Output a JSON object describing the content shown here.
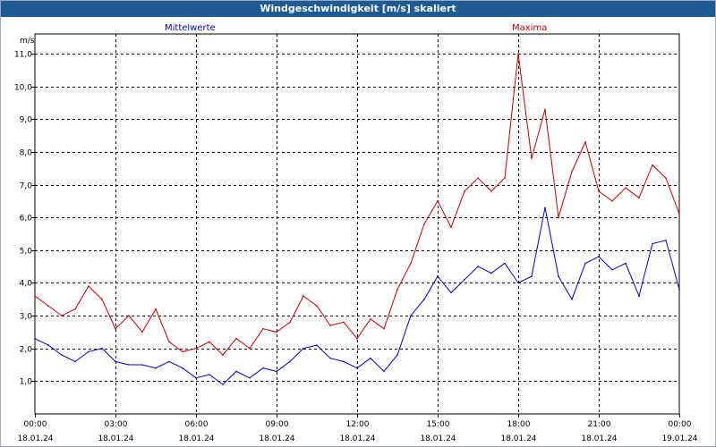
{
  "window": {
    "title": "Windgeschwindigkeit [m/s] skaliert"
  },
  "chart_data": {
    "type": "line",
    "title": "Windgeschwindigkeit [m/s] skaliert",
    "ylabel": "m/s",
    "ylim": [
      0,
      11.6
    ],
    "yticks": [
      "1,0",
      "2,0",
      "3,0",
      "4,0",
      "5,0",
      "6,0",
      "7,0",
      "8,0",
      "9,0",
      "10,0",
      "11,0"
    ],
    "xlim": [
      "18.01.24 00:00",
      "19.01.24 00:00"
    ],
    "xticks": [
      {
        "time": "00:00",
        "date": "18.01.24"
      },
      {
        "time": "03:00",
        "date": "18.01.24"
      },
      {
        "time": "06:00",
        "date": "18.01.24"
      },
      {
        "time": "09:00",
        "date": "18.01.24"
      },
      {
        "time": "12:00",
        "date": "18.01.24"
      },
      {
        "time": "15:00",
        "date": "18.01.24"
      },
      {
        "time": "18:00",
        "date": "18.01.24"
      },
      {
        "time": "21:00",
        "date": "18.01.24"
      },
      {
        "time": "00:00",
        "date": "19.01.24"
      }
    ],
    "grid": true,
    "x": [
      "00:00",
      "00:30",
      "01:00",
      "01:30",
      "02:00",
      "02:30",
      "03:00",
      "03:30",
      "04:00",
      "04:30",
      "05:00",
      "05:30",
      "06:00",
      "06:30",
      "07:00",
      "07:30",
      "08:00",
      "08:30",
      "09:00",
      "09:30",
      "10:00",
      "10:30",
      "11:00",
      "11:30",
      "12:00",
      "12:30",
      "13:00",
      "13:30",
      "14:00",
      "14:30",
      "15:00",
      "15:30",
      "16:00",
      "16:30",
      "17:00",
      "17:30",
      "18:00",
      "18:30",
      "19:00",
      "19:30",
      "20:00",
      "20:30",
      "21:00",
      "21:30",
      "22:00",
      "22:30",
      "23:00",
      "23:30",
      "00:00"
    ],
    "series": [
      {
        "name": "Mittelwerte",
        "color": "#0000c0",
        "values": [
          2.3,
          2.1,
          1.8,
          1.6,
          1.9,
          2.0,
          1.6,
          1.5,
          1.5,
          1.4,
          1.6,
          1.4,
          1.1,
          1.2,
          0.9,
          1.3,
          1.1,
          1.4,
          1.3,
          1.6,
          2.0,
          2.1,
          1.7,
          1.6,
          1.4,
          1.7,
          1.3,
          1.8,
          3.0,
          3.5,
          4.2,
          3.7,
          4.1,
          4.5,
          4.3,
          4.6,
          4.0,
          4.2,
          6.3,
          4.2,
          3.5,
          4.6,
          4.8,
          4.4,
          4.6,
          3.6,
          5.2,
          5.3,
          3.8
        ]
      },
      {
        "name": "Maxima",
        "color": "#c00000",
        "values": [
          3.6,
          3.3,
          3.0,
          3.2,
          3.9,
          3.5,
          2.6,
          3.0,
          2.5,
          3.2,
          2.2,
          1.9,
          2.0,
          2.2,
          1.8,
          2.3,
          2.0,
          2.6,
          2.5,
          2.8,
          3.6,
          3.3,
          2.7,
          2.8,
          2.3,
          2.9,
          2.6,
          3.8,
          4.6,
          5.8,
          6.5,
          5.7,
          6.8,
          7.2,
          6.8,
          7.2,
          11.0,
          7.8,
          9.3,
          6.0,
          7.4,
          8.3,
          6.8,
          6.5,
          6.9,
          6.6,
          7.6,
          7.2,
          6.1
        ]
      }
    ]
  }
}
